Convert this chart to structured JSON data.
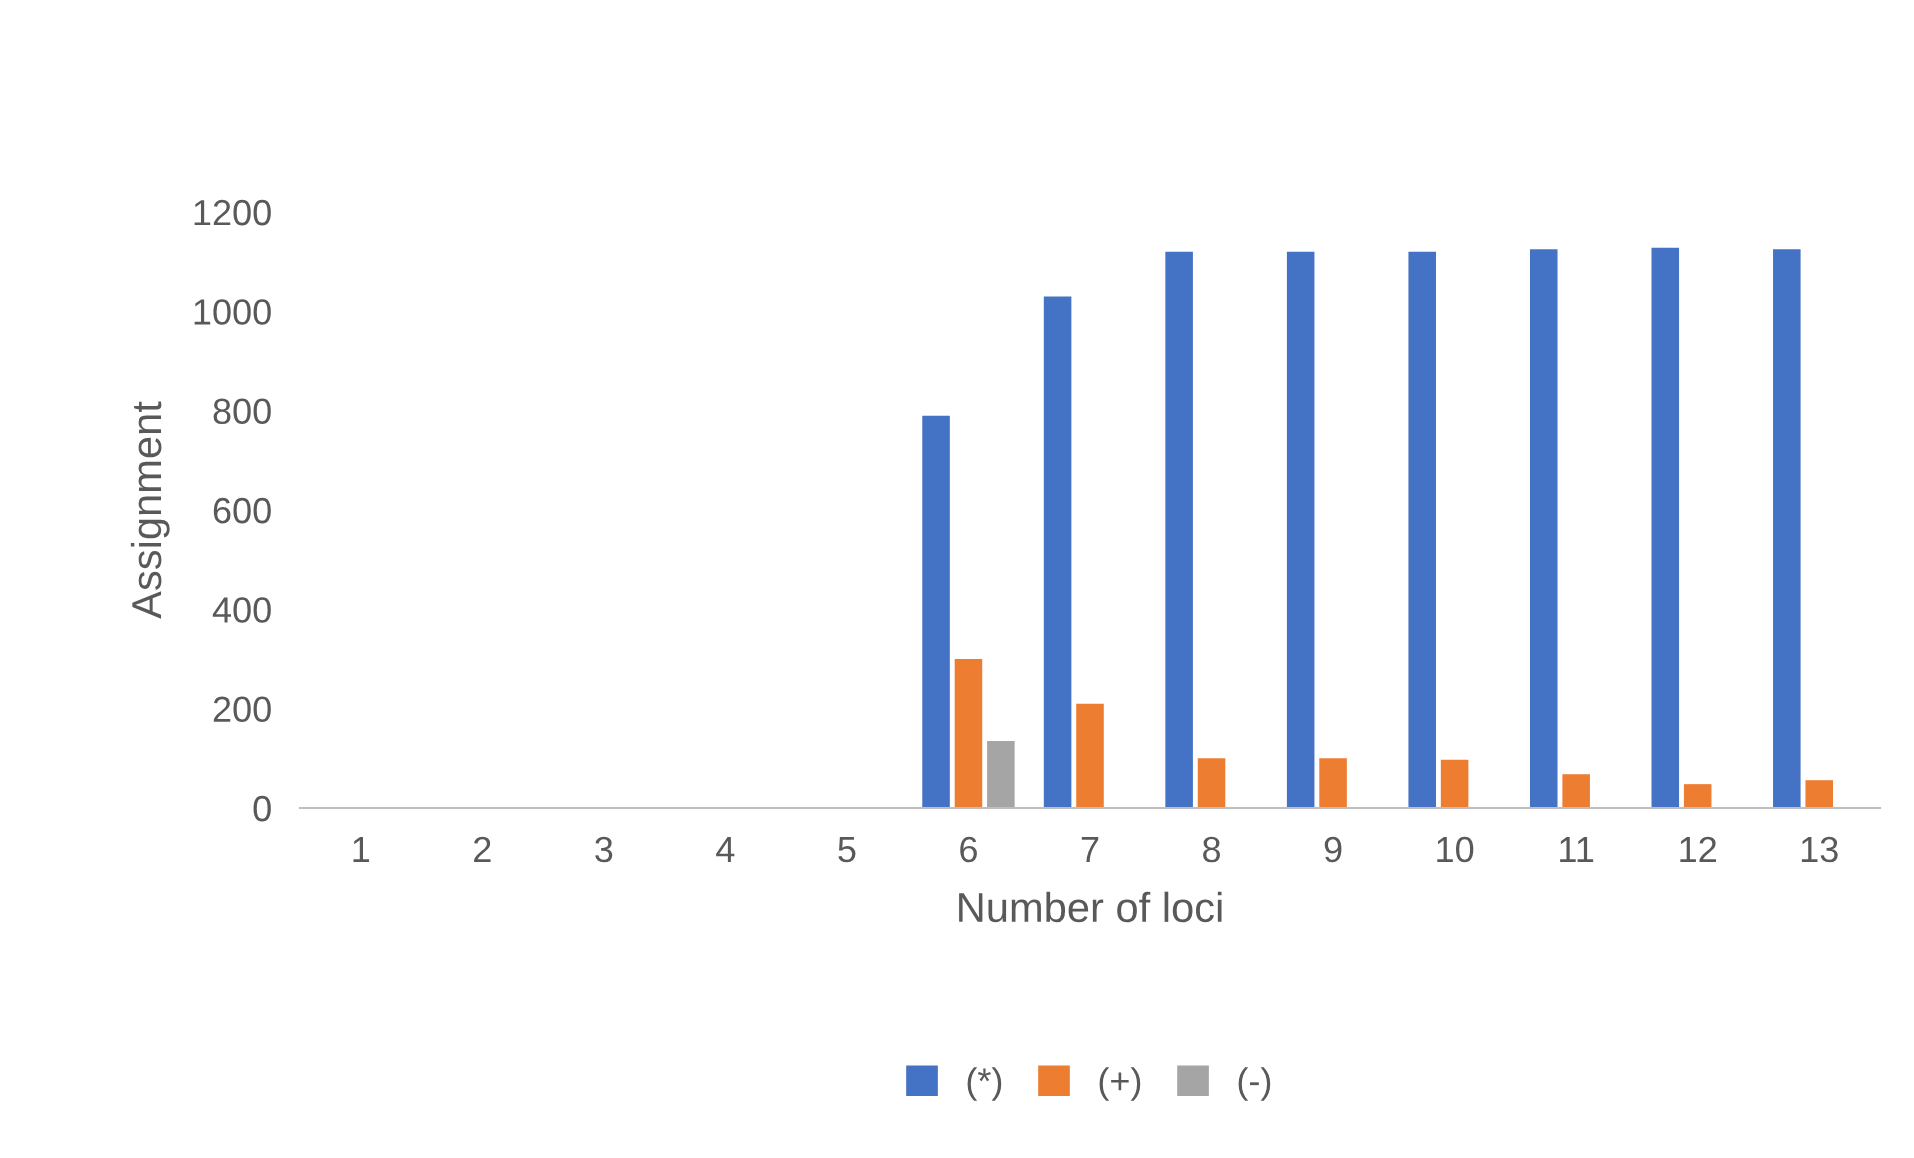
{
  "chart_data": {
    "type": "bar",
    "xlabel": "Number of loci",
    "ylabel": "Assignment",
    "categories": [
      "1",
      "2",
      "3",
      "4",
      "5",
      "6",
      "7",
      "8",
      "9",
      "10",
      "11",
      "12",
      "13"
    ],
    "series": [
      {
        "name": "(*)",
        "color": "#4472c4",
        "values": [
          0,
          0,
          0,
          0,
          0,
          790,
          1030,
          1120,
          1120,
          1120,
          1125,
          1128,
          1125
        ]
      },
      {
        "name": "(+)",
        "color": "#ed7d31",
        "values": [
          0,
          0,
          0,
          0,
          0,
          300,
          210,
          100,
          100,
          97,
          68,
          48,
          56
        ]
      },
      {
        "name": "(-)",
        "color": "#a5a5a5",
        "values": [
          0,
          0,
          0,
          0,
          0,
          135,
          0,
          0,
          0,
          0,
          0,
          0,
          0
        ]
      }
    ],
    "ylim": [
      0,
      1200
    ],
    "yticks": [
      0,
      200,
      400,
      600,
      800,
      1000,
      1200
    ],
    "grid": false,
    "legend": "bottom"
  }
}
